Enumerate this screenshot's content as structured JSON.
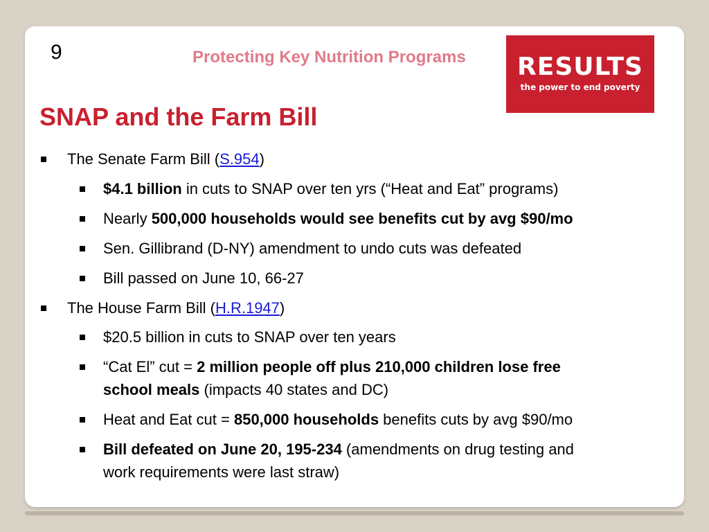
{
  "slide": {
    "number": "9",
    "header_title": "Protecting Key Nutrition Programs",
    "title": "SNAP and the Farm Bill",
    "logo": {
      "word": "RESULTS",
      "tagline": "the power to end poverty",
      "bg_color": "#c8202f"
    }
  },
  "bullets": {
    "senate": {
      "prefix": "The Senate Farm Bill (",
      "link": "S.954",
      "suffix": ")",
      "items": [
        {
          "bold": "$4.1 billion",
          "rest": " in cuts to SNAP over ten yrs (“Heat and Eat” programs)"
        },
        {
          "pre": "Nearly ",
          "bold": "500,000 households would see benefits cut by avg $90/mo"
        },
        {
          "text": "Sen. Gillibrand (D-NY) amendment to undo cuts was defeated"
        },
        {
          "text": "Bill passed on June 10, 66-27"
        }
      ]
    },
    "house": {
      "prefix": "The House Farm Bill (",
      "link": "H.R.1947",
      "suffix": ")",
      "items": [
        {
          "text": "$20.5 billion in cuts to SNAP over ten years"
        },
        {
          "pre": "“Cat El” cut  = ",
          "bold1": "2 million people off plus 210,000 children lose free",
          "bold2": "school meals",
          "rest": " (impacts 40 states and DC)"
        },
        {
          "pre": "Heat and Eat cut = ",
          "bold": "850,000 households",
          "rest": " benefits cuts by avg $90/mo"
        },
        {
          "bold": "Bill defeated on June 20, 195-234",
          "rest": " (amendments on drug testing and",
          "line2": "work requirements were last straw)"
        }
      ]
    }
  },
  "colors": {
    "accent_red": "#c8202f",
    "header_pink": "#e07a8a",
    "link_blue": "#1a1ad6",
    "background": "#d9d3c7"
  }
}
